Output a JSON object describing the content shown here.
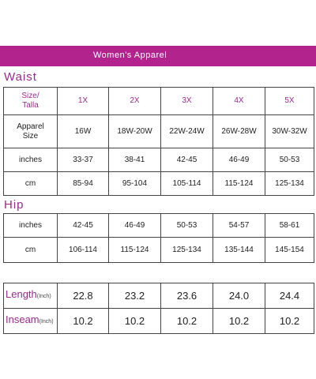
{
  "banner": "Women's Apparel",
  "waist": {
    "title": "Waist",
    "header": {
      "label": [
        "Size/",
        "Talla"
      ],
      "sizes": [
        "1X",
        "2X",
        "3X",
        "4X",
        "5X"
      ]
    },
    "rows": [
      {
        "label": [
          "Apparel",
          "Size"
        ],
        "cells": [
          "16W",
          "18W-20W",
          "22W-24W",
          "26W-28W",
          "30W-32W"
        ]
      },
      {
        "label": [
          "inches"
        ],
        "cells": [
          "33-37",
          "38-41",
          "42-45",
          "46-49",
          "50-53"
        ]
      },
      {
        "label": [
          "cm"
        ],
        "cells": [
          "85-94",
          "95-104",
          "105-114",
          "115-124",
          "125-134"
        ]
      }
    ]
  },
  "hip": {
    "title": "Hip",
    "rows": [
      {
        "label": [
          "inches"
        ],
        "cells": [
          "42-45",
          "46-49",
          "50-53",
          "54-57",
          "58-61"
        ]
      },
      {
        "label": [
          "cm"
        ],
        "cells": [
          "106-114",
          "115-124",
          "125-134",
          "135-144",
          "145-154"
        ]
      }
    ]
  },
  "measures": {
    "rows": [
      {
        "label": "Length",
        "unit": "(Inch)",
        "cells": [
          "22.8",
          "23.2",
          "23.6",
          "24.0",
          "24.4"
        ]
      },
      {
        "label": "Inseam",
        "unit": "(Inch)",
        "cells": [
          "10.2",
          "10.2",
          "10.2",
          "10.2",
          "10.2"
        ]
      }
    ]
  }
}
